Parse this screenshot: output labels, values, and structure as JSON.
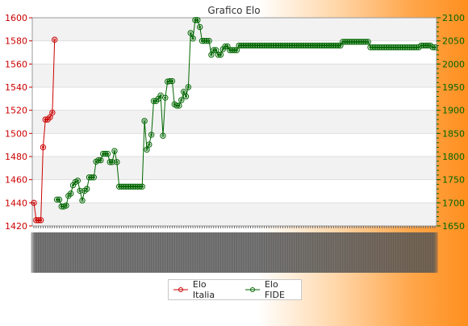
{
  "chart_data": {
    "type": "line",
    "title": "Grafico Elo",
    "x_tick_labels_visible": false,
    "grid": "horizontal bands",
    "legend_placement": "bottom-center",
    "y_left": {
      "min": 1420,
      "max": 1600,
      "step": 20,
      "ticks": [
        "1420",
        "1440",
        "1460",
        "1480",
        "1500",
        "1520",
        "1540",
        "1560",
        "1580",
        "1600"
      ],
      "color": "#cc0000"
    },
    "y_right": {
      "min": 1650,
      "max": 2100,
      "step": 50,
      "ticks": [
        "1650",
        "1700",
        "1750",
        "1800",
        "1850",
        "1900",
        "1950",
        "2000",
        "2050",
        "2100"
      ],
      "color": "#006600"
    },
    "series": [
      {
        "name": "Elo Italia",
        "axis": "left",
        "color": "#cc0000",
        "values": [
          1440,
          1425,
          1425,
          1425,
          1488,
          1512,
          1512,
          1514,
          1518,
          1581
        ]
      },
      {
        "name": "Elo FIDE",
        "axis": "right",
        "color": "#006600",
        "start_index": 10,
        "values": [
          1707,
          1707,
          1692,
          1692,
          1694,
          1715,
          1720,
          1738,
          1745,
          1748,
          1726,
          1705,
          1726,
          1730,
          1755,
          1755,
          1755,
          1789,
          1792,
          1792,
          1806,
          1806,
          1806,
          1788,
          1788,
          1812,
          1788,
          1735,
          1735,
          1735,
          1735,
          1735,
          1735,
          1735,
          1735,
          1735,
          1735,
          1735,
          1877,
          1815,
          1826,
          1847,
          1920,
          1920,
          1925,
          1932,
          1845,
          1927,
          1962,
          1963,
          1963,
          1913,
          1910,
          1910,
          1922,
          1940,
          1930,
          1950,
          2067,
          2055,
          2095,
          2095,
          2080,
          2050,
          2050,
          2050,
          2050,
          2020,
          2030,
          2030,
          2020,
          2020,
          2032,
          2038,
          2038,
          2030,
          2030,
          2030,
          2030,
          2040,
          2040,
          2040,
          2040,
          2040,
          2040,
          2040,
          2040,
          2040,
          2040,
          2040,
          2040,
          2040,
          2040,
          2040,
          2040,
          2040,
          2040,
          2040,
          2040,
          2040,
          2040,
          2040,
          2040,
          2040,
          2040,
          2040,
          2040,
          2040,
          2040,
          2040,
          2040,
          2040,
          2040,
          2040,
          2040,
          2040,
          2040,
          2040,
          2040,
          2040,
          2040,
          2040,
          2040,
          2040,
          2048,
          2048,
          2048,
          2048,
          2048,
          2048,
          2048,
          2048,
          2048,
          2048,
          2048,
          2048,
          2036,
          2036,
          2036,
          2036,
          2036,
          2036,
          2036,
          2036,
          2036,
          2036,
          2036,
          2036,
          2036,
          2036,
          2036,
          2036,
          2036,
          2036,
          2036,
          2036,
          2036,
          2036,
          2040,
          2040,
          2040,
          2040,
          2040,
          2036,
          2036
        ]
      }
    ]
  }
}
